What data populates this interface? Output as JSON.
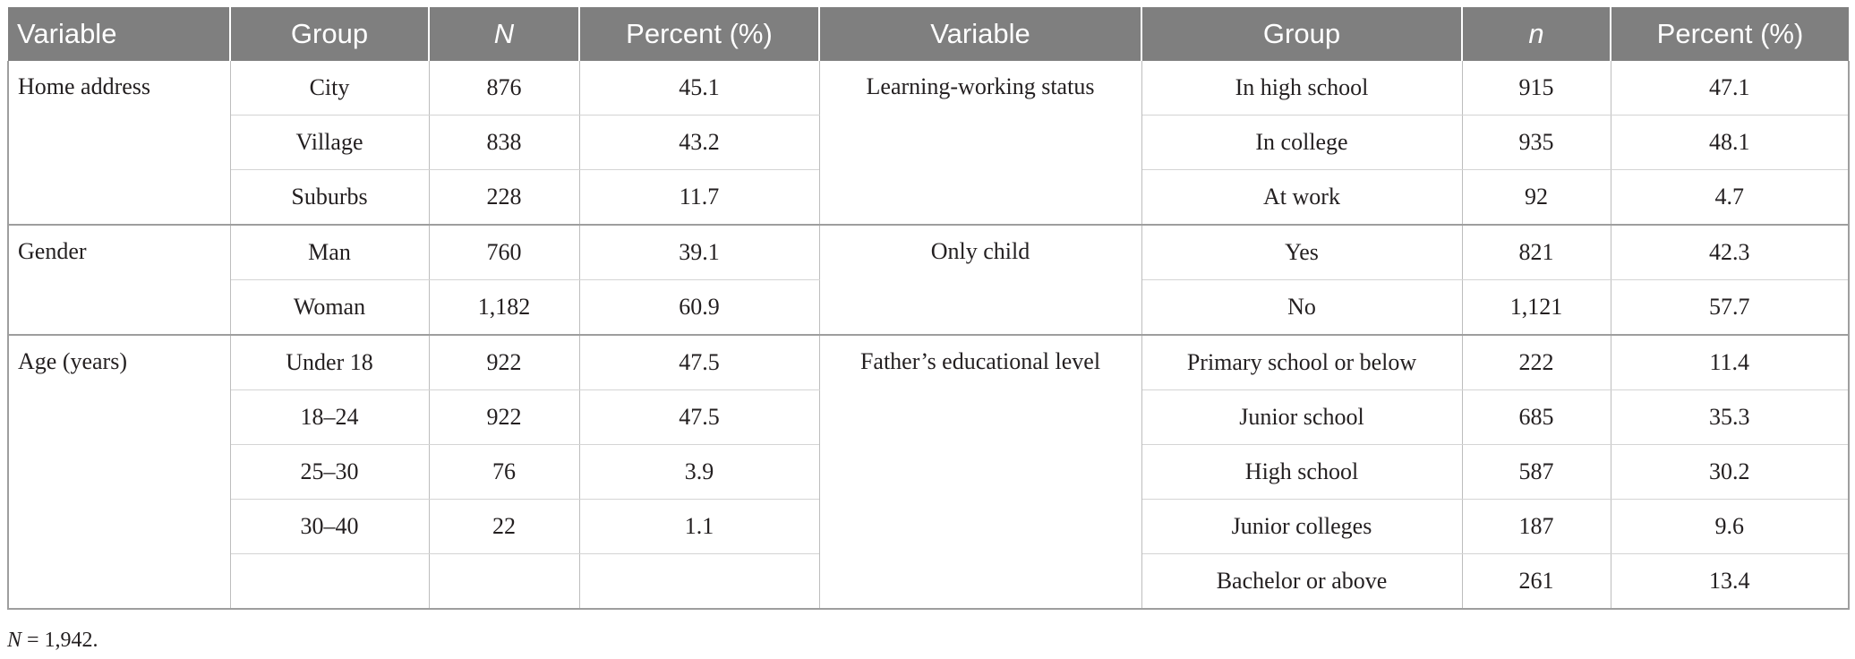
{
  "headers": {
    "left_variable": "Variable",
    "left_group": "Group",
    "left_n": "N",
    "left_percent": "Percent (%)",
    "right_variable": "Variable",
    "right_group": "Group",
    "right_n": "n",
    "right_percent": "Percent (%)"
  },
  "left": {
    "home": {
      "variable": "Home address",
      "rows": [
        {
          "group": "City",
          "n": "876",
          "percent": "45.1"
        },
        {
          "group": "Village",
          "n": "838",
          "percent": "43.2"
        },
        {
          "group": "Suburbs",
          "n": "228",
          "percent": "11.7"
        }
      ]
    },
    "gender": {
      "variable": "Gender",
      "rows": [
        {
          "group": "Man",
          "n": "760",
          "percent": "39.1"
        },
        {
          "group": "Woman",
          "n": "1,182",
          "percent": "60.9"
        }
      ]
    },
    "age": {
      "variable": "Age (years)",
      "rows": [
        {
          "group": "Under 18",
          "n": "922",
          "percent": "47.5"
        },
        {
          "group": "18–24",
          "n": "922",
          "percent": "47.5"
        },
        {
          "group": "25–30",
          "n": "76",
          "percent": "3.9"
        },
        {
          "group": "30–40",
          "n": "22",
          "percent": "1.1"
        }
      ]
    }
  },
  "right": {
    "learning": {
      "variable": "Learning-working status",
      "rows": [
        {
          "group": "In high school",
          "n": "915",
          "percent": "47.1"
        },
        {
          "group": "In college",
          "n": "935",
          "percent": "48.1"
        },
        {
          "group": "At work",
          "n": "92",
          "percent": "4.7"
        }
      ]
    },
    "only_child": {
      "variable": "Only child",
      "rows": [
        {
          "group": "Yes",
          "n": "821",
          "percent": "42.3"
        },
        {
          "group": "No",
          "n": "1,121",
          "percent": "57.7"
        }
      ]
    },
    "father": {
      "variable": "Father’s educational level",
      "rows": [
        {
          "group": "Primary school or below",
          "n": "222",
          "percent": "11.4"
        },
        {
          "group": "Junior school",
          "n": "685",
          "percent": "35.3"
        },
        {
          "group": "High school",
          "n": "587",
          "percent": "30.2"
        },
        {
          "group": "Junior colleges",
          "n": "187",
          "percent": "9.6"
        },
        {
          "group": "Bachelor or above",
          "n": "261",
          "percent": "13.4"
        }
      ]
    }
  },
  "footnote": {
    "symbol": "N",
    "text": " = 1,942."
  }
}
